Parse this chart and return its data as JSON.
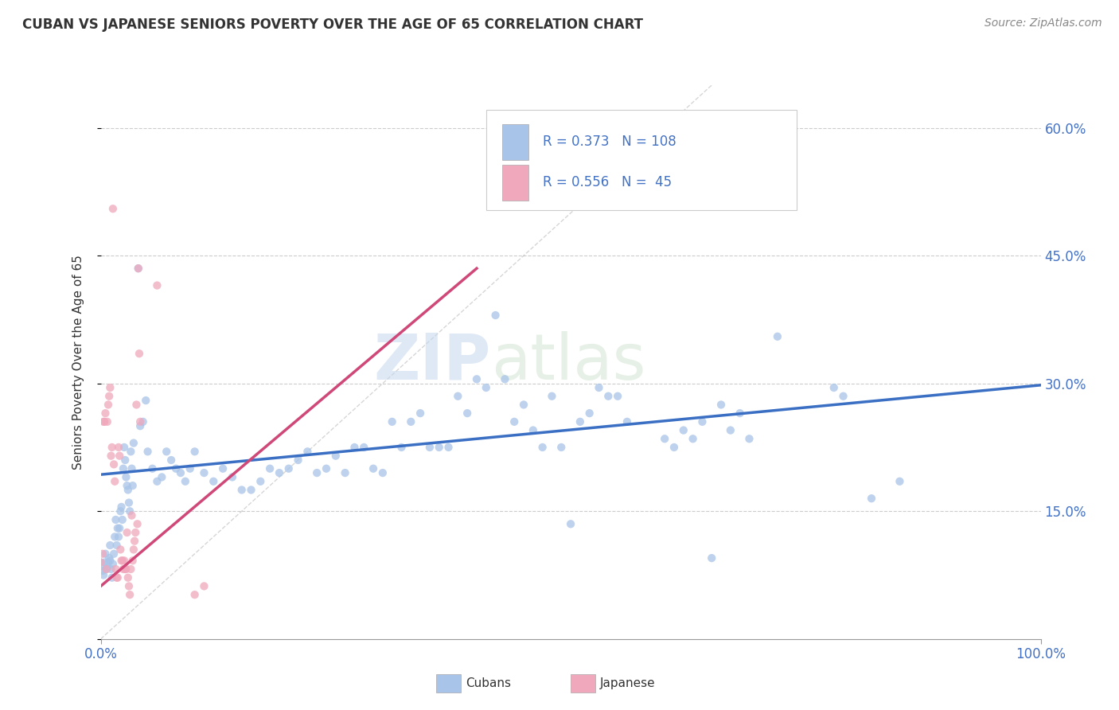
{
  "title": "CUBAN VS JAPANESE SENIORS POVERTY OVER THE AGE OF 65 CORRELATION CHART",
  "source": "Source: ZipAtlas.com",
  "ylabel": "Seniors Poverty Over the Age of 65",
  "xlim": [
    0,
    1.0
  ],
  "ylim": [
    0,
    0.65
  ],
  "yticks": [
    0.0,
    0.15,
    0.3,
    0.45,
    0.6
  ],
  "yticklabels": [
    "",
    "15.0%",
    "30.0%",
    "45.0%",
    "60.0%"
  ],
  "background_color": "#ffffff",
  "grid_color": "#cccccc",
  "watermark_zip": "ZIP",
  "watermark_atlas": "atlas",
  "cubans_color": "#a8c4e8",
  "cubans_line_color": "#3a6fc4",
  "japanese_color": "#f0a8bc",
  "japanese_line_color": "#d04878",
  "scatter_alpha": 0.75,
  "marker_size": 55,
  "cubans_scatter": [
    [
      0.0,
      0.09
    ],
    [
      0.001,
      0.085
    ],
    [
      0.002,
      0.08
    ],
    [
      0.003,
      0.075
    ],
    [
      0.004,
      0.09
    ],
    [
      0.005,
      0.1
    ],
    [
      0.006,
      0.082
    ],
    [
      0.007,
      0.083
    ],
    [
      0.008,
      0.09
    ],
    [
      0.009,
      0.095
    ],
    [
      0.01,
      0.11
    ],
    [
      0.01,
      0.092
    ],
    [
      0.011,
      0.082
    ],
    [
      0.012,
      0.072
    ],
    [
      0.013,
      0.088
    ],
    [
      0.014,
      0.1
    ],
    [
      0.015,
      0.12
    ],
    [
      0.016,
      0.14
    ],
    [
      0.017,
      0.11
    ],
    [
      0.018,
      0.13
    ],
    [
      0.019,
      0.12
    ],
    [
      0.02,
      0.13
    ],
    [
      0.021,
      0.15
    ],
    [
      0.022,
      0.155
    ],
    [
      0.023,
      0.14
    ],
    [
      0.024,
      0.2
    ],
    [
      0.025,
      0.225
    ],
    [
      0.026,
      0.21
    ],
    [
      0.027,
      0.19
    ],
    [
      0.028,
      0.18
    ],
    [
      0.029,
      0.175
    ],
    [
      0.03,
      0.16
    ],
    [
      0.031,
      0.15
    ],
    [
      0.032,
      0.22
    ],
    [
      0.033,
      0.2
    ],
    [
      0.034,
      0.18
    ],
    [
      0.035,
      0.23
    ],
    [
      0.04,
      0.435
    ],
    [
      0.042,
      0.25
    ],
    [
      0.045,
      0.255
    ],
    [
      0.048,
      0.28
    ],
    [
      0.05,
      0.22
    ],
    [
      0.055,
      0.2
    ],
    [
      0.06,
      0.185
    ],
    [
      0.065,
      0.19
    ],
    [
      0.07,
      0.22
    ],
    [
      0.075,
      0.21
    ],
    [
      0.08,
      0.2
    ],
    [
      0.085,
      0.195
    ],
    [
      0.09,
      0.185
    ],
    [
      0.095,
      0.2
    ],
    [
      0.1,
      0.22
    ],
    [
      0.11,
      0.195
    ],
    [
      0.12,
      0.185
    ],
    [
      0.13,
      0.2
    ],
    [
      0.14,
      0.19
    ],
    [
      0.15,
      0.175
    ],
    [
      0.16,
      0.175
    ],
    [
      0.17,
      0.185
    ],
    [
      0.18,
      0.2
    ],
    [
      0.19,
      0.195
    ],
    [
      0.2,
      0.2
    ],
    [
      0.21,
      0.21
    ],
    [
      0.22,
      0.22
    ],
    [
      0.23,
      0.195
    ],
    [
      0.24,
      0.2
    ],
    [
      0.25,
      0.215
    ],
    [
      0.26,
      0.195
    ],
    [
      0.27,
      0.225
    ],
    [
      0.28,
      0.225
    ],
    [
      0.29,
      0.2
    ],
    [
      0.3,
      0.195
    ],
    [
      0.31,
      0.255
    ],
    [
      0.32,
      0.225
    ],
    [
      0.33,
      0.255
    ],
    [
      0.34,
      0.265
    ],
    [
      0.35,
      0.225
    ],
    [
      0.36,
      0.225
    ],
    [
      0.37,
      0.225
    ],
    [
      0.38,
      0.285
    ],
    [
      0.39,
      0.265
    ],
    [
      0.4,
      0.305
    ],
    [
      0.41,
      0.295
    ],
    [
      0.42,
      0.38
    ],
    [
      0.43,
      0.305
    ],
    [
      0.44,
      0.255
    ],
    [
      0.45,
      0.275
    ],
    [
      0.46,
      0.245
    ],
    [
      0.47,
      0.225
    ],
    [
      0.48,
      0.285
    ],
    [
      0.49,
      0.225
    ],
    [
      0.5,
      0.135
    ],
    [
      0.51,
      0.255
    ],
    [
      0.52,
      0.265
    ],
    [
      0.53,
      0.295
    ],
    [
      0.54,
      0.285
    ],
    [
      0.55,
      0.285
    ],
    [
      0.56,
      0.255
    ],
    [
      0.6,
      0.235
    ],
    [
      0.61,
      0.225
    ],
    [
      0.62,
      0.245
    ],
    [
      0.63,
      0.235
    ],
    [
      0.64,
      0.255
    ],
    [
      0.65,
      0.095
    ],
    [
      0.66,
      0.275
    ],
    [
      0.67,
      0.245
    ],
    [
      0.68,
      0.265
    ],
    [
      0.69,
      0.235
    ],
    [
      0.72,
      0.355
    ],
    [
      0.78,
      0.295
    ],
    [
      0.79,
      0.285
    ],
    [
      0.82,
      0.165
    ],
    [
      0.85,
      0.185
    ]
  ],
  "japanese_scatter": [
    [
      0.0,
      0.09
    ],
    [
      0.002,
      0.1
    ],
    [
      0.003,
      0.255
    ],
    [
      0.004,
      0.255
    ],
    [
      0.005,
      0.265
    ],
    [
      0.006,
      0.082
    ],
    [
      0.007,
      0.255
    ],
    [
      0.008,
      0.275
    ],
    [
      0.009,
      0.285
    ],
    [
      0.01,
      0.295
    ],
    [
      0.011,
      0.215
    ],
    [
      0.012,
      0.225
    ],
    [
      0.013,
      0.505
    ],
    [
      0.014,
      0.205
    ],
    [
      0.015,
      0.185
    ],
    [
      0.016,
      0.082
    ],
    [
      0.017,
      0.072
    ],
    [
      0.018,
      0.072
    ],
    [
      0.019,
      0.225
    ],
    [
      0.02,
      0.215
    ],
    [
      0.021,
      0.105
    ],
    [
      0.022,
      0.092
    ],
    [
      0.023,
      0.092
    ],
    [
      0.024,
      0.082
    ],
    [
      0.025,
      0.092
    ],
    [
      0.026,
      0.082
    ],
    [
      0.027,
      0.082
    ],
    [
      0.028,
      0.125
    ],
    [
      0.029,
      0.072
    ],
    [
      0.03,
      0.062
    ],
    [
      0.031,
      0.052
    ],
    [
      0.032,
      0.082
    ],
    [
      0.033,
      0.145
    ],
    [
      0.034,
      0.092
    ],
    [
      0.035,
      0.105
    ],
    [
      0.036,
      0.115
    ],
    [
      0.037,
      0.125
    ],
    [
      0.038,
      0.275
    ],
    [
      0.039,
      0.135
    ],
    [
      0.04,
      0.435
    ],
    [
      0.041,
      0.335
    ],
    [
      0.042,
      0.255
    ],
    [
      0.06,
      0.415
    ],
    [
      0.1,
      0.052
    ],
    [
      0.11,
      0.062
    ]
  ],
  "cubans_trendline": [
    [
      0.0,
      0.193
    ],
    [
      1.0,
      0.298
    ]
  ],
  "japanese_trendline": [
    [
      0.0,
      0.062
    ],
    [
      0.4,
      0.435
    ]
  ],
  "diagonal_line": [
    [
      0.0,
      0.0
    ],
    [
      0.65,
      0.65
    ]
  ]
}
